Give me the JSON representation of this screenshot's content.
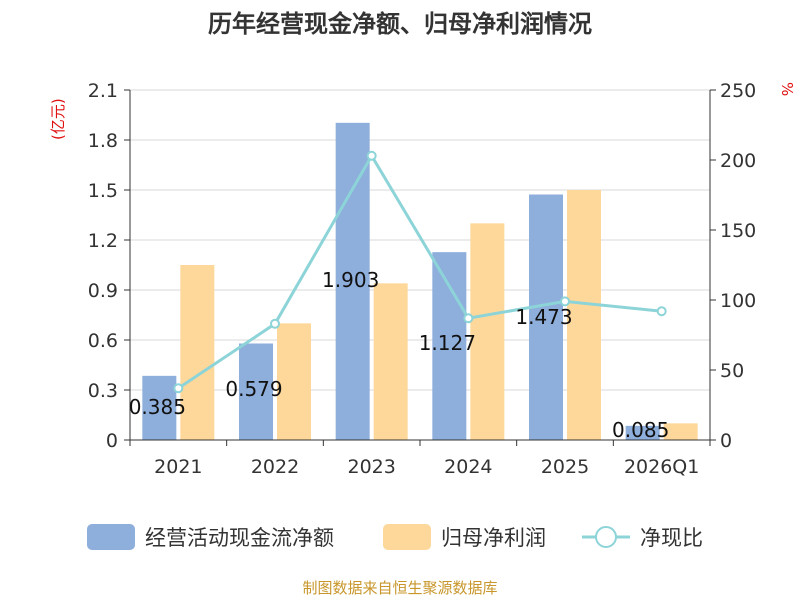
{
  "chart_data": {
    "type": "bar",
    "title": "历年经营现金净额、归母净利润情况",
    "categories": [
      "2021",
      "2022",
      "2023",
      "2024",
      "2025",
      "2026Q1"
    ],
    "y_left": {
      "label": "(亿元)",
      "ylim": [
        0,
        2.1
      ],
      "ticks": [
        "0",
        "0.3",
        "0.6",
        "0.9",
        "1.2",
        "1.5",
        "1.8",
        "2.1"
      ]
    },
    "y_right": {
      "label": "%",
      "ylim": [
        0,
        250
      ],
      "ticks": [
        "0",
        "50",
        "100",
        "150",
        "200",
        "250"
      ]
    },
    "series": [
      {
        "name": "经营活动现金流净额",
        "kind": "bar",
        "axis": "left",
        "color": "#8eaedb",
        "values": [
          0.385,
          0.579,
          1.903,
          1.127,
          1.473,
          0.085
        ],
        "labels": [
          "0.385",
          "0.579",
          "1.903",
          "1.127",
          "1.473",
          "0.085"
        ]
      },
      {
        "name": "归母净利润",
        "kind": "bar",
        "axis": "left",
        "color": "#fdd89a",
        "values": [
          1.05,
          0.7,
          0.94,
          1.3,
          1.5,
          0.1
        ]
      },
      {
        "name": "净现比",
        "kind": "line",
        "axis": "right",
        "color": "#8dd4d8",
        "values": [
          37,
          83,
          203,
          87,
          99,
          92
        ]
      }
    ],
    "grid": true,
    "legend": "bottom"
  },
  "source": "制图数据来自恒生聚源数据库"
}
